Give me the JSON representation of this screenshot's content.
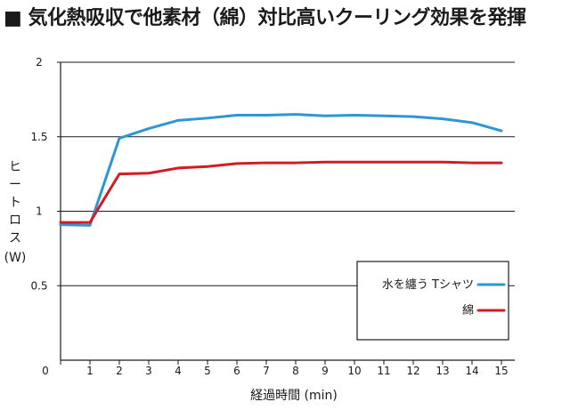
{
  "chart_data": {
    "type": "line",
    "title": "■ 気化熱吸収で他素材（綿）対比高いクーリング効果を発揮",
    "xlabel": "経過時間 (min)",
    "ylabel_lines": [
      "ヒ",
      "ー",
      "ト",
      "ロ",
      "ス",
      "(W)"
    ],
    "x": [
      0,
      1,
      2,
      3,
      4,
      5,
      6,
      7,
      8,
      9,
      10,
      11,
      12,
      13,
      14,
      15
    ],
    "x_ticks": [
      "0",
      "1",
      "2",
      "3",
      "4",
      "5",
      "6",
      "7",
      "8",
      "9",
      "10",
      "11",
      "12",
      "13",
      "14",
      "15"
    ],
    "y_ticks": [
      "0",
      "0.5",
      "1",
      "1.5",
      "2"
    ],
    "ylim": [
      0,
      2
    ],
    "xlim": [
      0,
      15
    ],
    "grid": "horizontal",
    "legend_position": "bottom-right",
    "series": [
      {
        "name": "水を纏う Tシャツ",
        "color": "#2e96d3",
        "values": [
          0.91,
          0.905,
          1.49,
          1.555,
          1.61,
          1.625,
          1.645,
          1.645,
          1.65,
          1.64,
          1.645,
          1.64,
          1.635,
          1.62,
          1.595,
          1.54
        ]
      },
      {
        "name": "綿",
        "color": "#d21c24",
        "values": [
          0.925,
          0.925,
          1.25,
          1.255,
          1.29,
          1.3,
          1.32,
          1.325,
          1.325,
          1.33,
          1.33,
          1.33,
          1.33,
          1.33,
          1.325,
          1.325
        ]
      }
    ]
  }
}
